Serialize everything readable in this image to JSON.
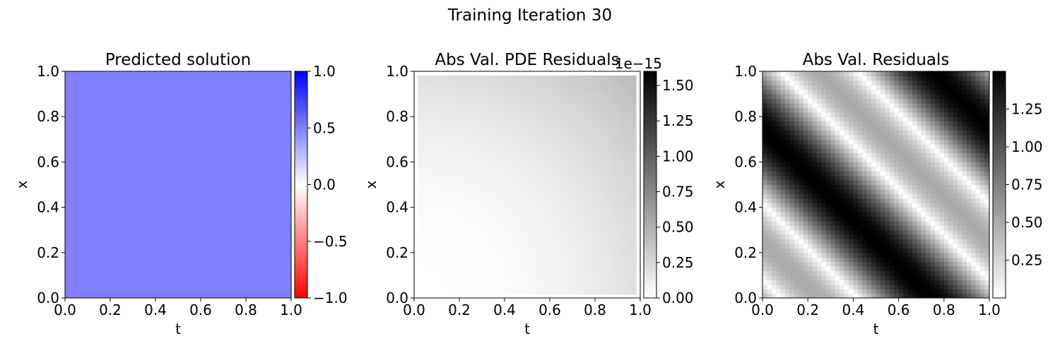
{
  "figure": {
    "suptitle": "Training Iteration 30"
  },
  "chart_data": [
    {
      "type": "heatmap",
      "title": "Predicted solution",
      "xlabel": "t",
      "ylabel": "x",
      "xlim": [
        0.0,
        1.0
      ],
      "ylim": [
        0.0,
        1.0
      ],
      "xticks": [
        0.0,
        0.2,
        0.4,
        0.6,
        0.8,
        1.0
      ],
      "yticks": [
        0.0,
        0.2,
        0.4,
        0.6,
        0.8,
        1.0
      ],
      "xtick_labels": [
        "0.0",
        "0.2",
        "0.4",
        "0.6",
        "0.8",
        "1.0"
      ],
      "ytick_labels": [
        "0.0",
        "0.2",
        "0.4",
        "0.6",
        "0.8",
        "1.0"
      ],
      "colormap": "bwr_r",
      "field": "constant",
      "value": 0.5,
      "colorbar": {
        "range": [
          -1.0,
          1.0
        ],
        "ticks": [
          -1.0,
          -0.5,
          0.0,
          0.5,
          1.0
        ],
        "labels": [
          "−1.0",
          "−0.5",
          "0.0",
          "0.5",
          "1.0"
        ],
        "offset_text": ""
      },
      "colors": {
        "low": "#ff0000",
        "mid": "#ffffff",
        "high": "#0000ff"
      },
      "grid": false
    },
    {
      "type": "heatmap",
      "title": "Abs Val. PDE Residuals",
      "xlabel": "t",
      "ylabel": "x",
      "xlim": [
        0.0,
        1.0
      ],
      "ylim": [
        0.0,
        1.0
      ],
      "xticks": [
        0.0,
        0.2,
        0.4,
        0.6,
        0.8,
        1.0
      ],
      "yticks": [
        0.0,
        0.2,
        0.4,
        0.6,
        0.8,
        1.0
      ],
      "xtick_labels": [
        "0.0",
        "0.2",
        "0.4",
        "0.6",
        "0.8",
        "1.0"
      ],
      "ytick_labels": [
        "0.0",
        "0.2",
        "0.4",
        "0.6",
        "0.8",
        "1.0"
      ],
      "colormap": "gray_r",
      "field": "radial-corner",
      "value_at_origin": 0.0,
      "value_at_top_right": 0.45,
      "boundary_value": 0.0,
      "colorbar": {
        "range": [
          0.0,
          1.6
        ],
        "ticks": [
          0.0,
          0.25,
          0.5,
          0.75,
          1.0,
          1.25,
          1.5
        ],
        "labels": [
          "0.00",
          "0.25",
          "0.50",
          "0.75",
          "1.00",
          "1.25",
          "1.50"
        ],
        "offset_text": "1e−15"
      },
      "colors": {
        "low": "#ffffff",
        "high": "#000000"
      },
      "grid": false
    },
    {
      "type": "heatmap",
      "title": "Abs Val. Residuals",
      "xlabel": "t",
      "ylabel": "x",
      "xlim": [
        0.0,
        1.0
      ],
      "ylim": [
        0.0,
        1.0
      ],
      "xticks": [
        0.0,
        0.2,
        0.4,
        0.6,
        0.8,
        1.0
      ],
      "yticks": [
        0.0,
        0.2,
        0.4,
        0.6,
        0.8,
        1.0
      ],
      "xtick_labels": [
        "0.0",
        "0.2",
        "0.4",
        "0.6",
        "0.8",
        "1.0"
      ],
      "ytick_labels": [
        "0.0",
        "0.2",
        "0.4",
        "0.6",
        "0.8",
        "1.0"
      ],
      "colormap": "gray_r",
      "field": "abs-sin-diagonal",
      "formula": "|0.5 - 1.0*sin(2*pi*(x + t))|",
      "colorbar": {
        "range": [
          0.0,
          1.5
        ],
        "ticks": [
          0.25,
          0.5,
          0.75,
          1.0,
          1.25
        ],
        "labels": [
          "0.25",
          "0.50",
          "0.75",
          "1.00",
          "1.25"
        ],
        "offset_text": ""
      },
      "colors": {
        "low": "#ffffff",
        "high": "#000000"
      },
      "grid": false
    }
  ]
}
